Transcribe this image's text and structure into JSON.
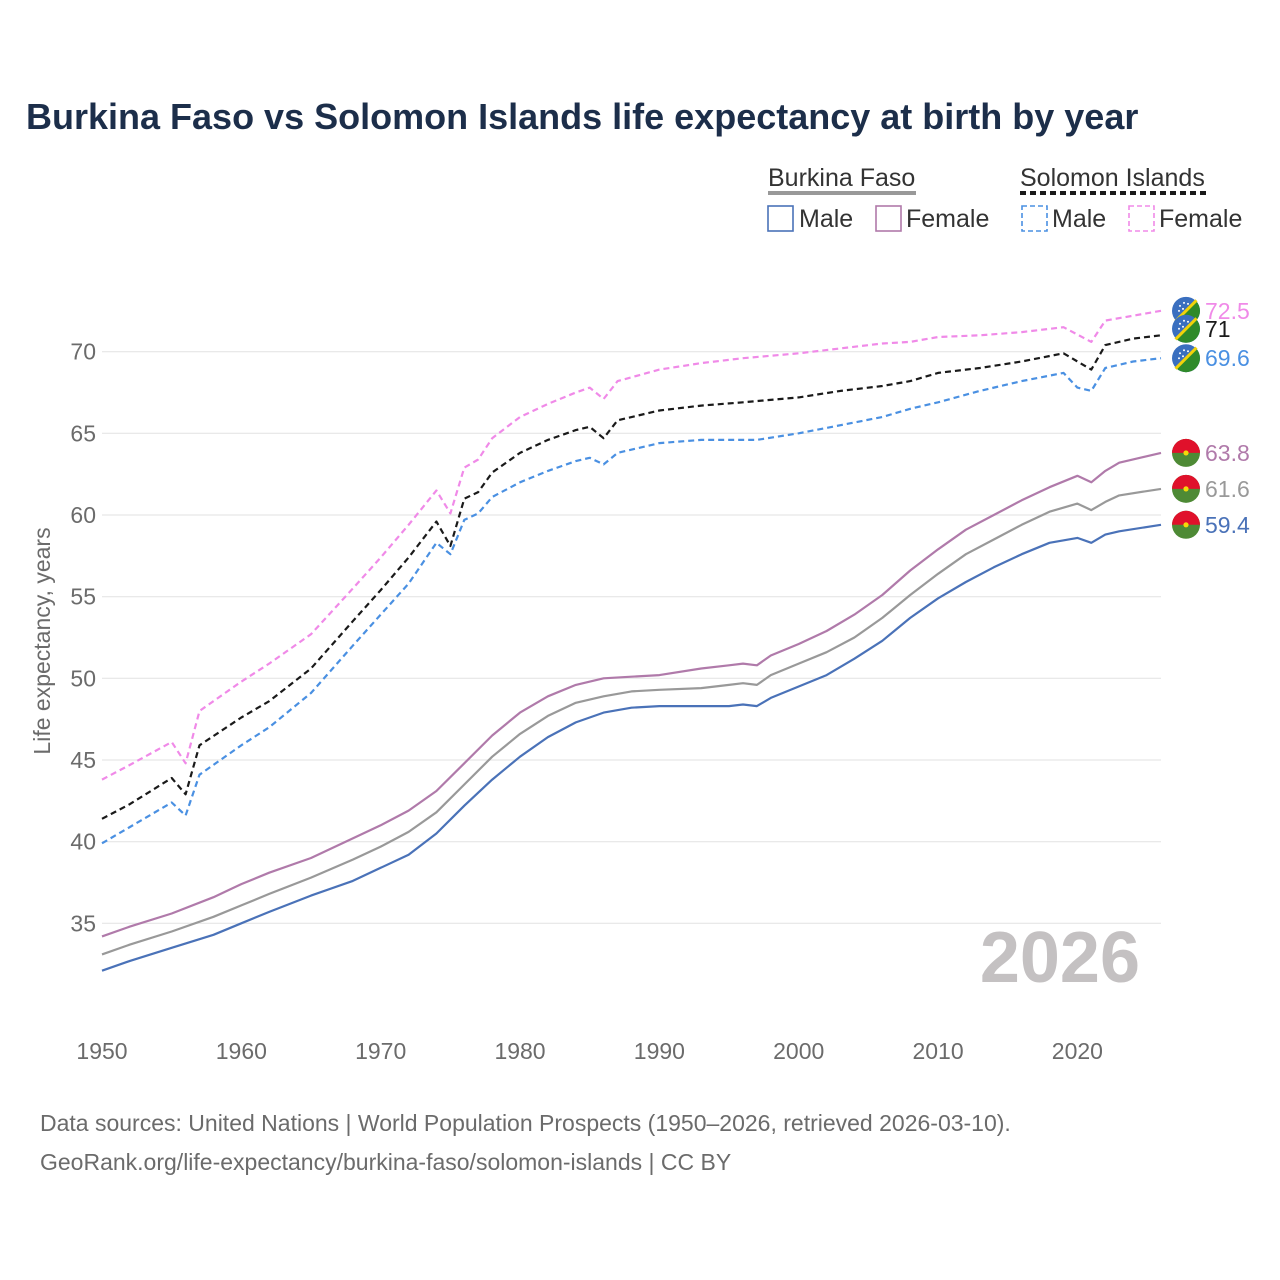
{
  "chart_data": {
    "type": "line",
    "title": "Burkina Faso vs Solomon Islands life expectancy at birth by year",
    "ylabel": "Life expectancy, years",
    "xlabel": "",
    "xlim": [
      1950,
      2026
    ],
    "ylim": [
      30,
      75
    ],
    "x_ticks": [
      "1950",
      "1960",
      "1970",
      "1980",
      "1990",
      "2000",
      "2010",
      "2020"
    ],
    "y_ticks": [
      "35",
      "40",
      "45",
      "50",
      "55",
      "60",
      "65",
      "70"
    ],
    "year_watermark": "2026",
    "legend": {
      "groups": [
        "Burkina Faso",
        "Solomon Islands"
      ],
      "items": [
        "Male",
        "Female",
        "Male",
        "Female"
      ]
    },
    "colors": {
      "male_bf": "#4a72b8",
      "female_bf": "#b07aaa",
      "total_bf": "#999999",
      "male_sb": "#4a90e2",
      "female_sb": "#f08ae8",
      "total_sb": "#1a1a1a"
    },
    "series": [
      {
        "name": "Burkina Faso — Female",
        "key": "female_bf",
        "dashed": false,
        "end_label": "63.8",
        "points": [
          [
            1950,
            34.2
          ],
          [
            1952,
            34.8
          ],
          [
            1955,
            35.6
          ],
          [
            1958,
            36.6
          ],
          [
            1960,
            37.4
          ],
          [
            1962,
            38.1
          ],
          [
            1965,
            39.0
          ],
          [
            1968,
            40.2
          ],
          [
            1970,
            41.0
          ],
          [
            1972,
            41.9
          ],
          [
            1974,
            43.1
          ],
          [
            1976,
            44.8
          ],
          [
            1978,
            46.5
          ],
          [
            1980,
            47.9
          ],
          [
            1982,
            48.9
          ],
          [
            1984,
            49.6
          ],
          [
            1986,
            50.0
          ],
          [
            1988,
            50.1
          ],
          [
            1990,
            50.2
          ],
          [
            1993,
            50.6
          ],
          [
            1995,
            50.8
          ],
          [
            1996,
            50.9
          ],
          [
            1997,
            50.8
          ],
          [
            1998,
            51.4
          ],
          [
            2000,
            52.1
          ],
          [
            2002,
            52.9
          ],
          [
            2004,
            53.9
          ],
          [
            2006,
            55.1
          ],
          [
            2008,
            56.6
          ],
          [
            2010,
            57.9
          ],
          [
            2012,
            59.1
          ],
          [
            2014,
            60.0
          ],
          [
            2016,
            60.9
          ],
          [
            2018,
            61.7
          ],
          [
            2020,
            62.4
          ],
          [
            2021,
            62.0
          ],
          [
            2022,
            62.7
          ],
          [
            2023,
            63.2
          ],
          [
            2026,
            63.8
          ]
        ]
      },
      {
        "name": "Burkina Faso — Total",
        "key": "total_bf",
        "dashed": false,
        "end_label": "61.6",
        "points": [
          [
            1950,
            33.1
          ],
          [
            1952,
            33.7
          ],
          [
            1955,
            34.5
          ],
          [
            1958,
            35.4
          ],
          [
            1960,
            36.1
          ],
          [
            1962,
            36.8
          ],
          [
            1965,
            37.8
          ],
          [
            1968,
            38.9
          ],
          [
            1970,
            39.7
          ],
          [
            1972,
            40.6
          ],
          [
            1974,
            41.8
          ],
          [
            1976,
            43.5
          ],
          [
            1978,
            45.2
          ],
          [
            1980,
            46.6
          ],
          [
            1982,
            47.7
          ],
          [
            1984,
            48.5
          ],
          [
            1986,
            48.9
          ],
          [
            1988,
            49.2
          ],
          [
            1990,
            49.3
          ],
          [
            1993,
            49.4
          ],
          [
            1995,
            49.6
          ],
          [
            1996,
            49.7
          ],
          [
            1997,
            49.6
          ],
          [
            1998,
            50.2
          ],
          [
            2000,
            50.9
          ],
          [
            2002,
            51.6
          ],
          [
            2004,
            52.5
          ],
          [
            2006,
            53.7
          ],
          [
            2008,
            55.1
          ],
          [
            2010,
            56.4
          ],
          [
            2012,
            57.6
          ],
          [
            2014,
            58.5
          ],
          [
            2016,
            59.4
          ],
          [
            2018,
            60.2
          ],
          [
            2020,
            60.7
          ],
          [
            2021,
            60.3
          ],
          [
            2022,
            60.8
          ],
          [
            2023,
            61.2
          ],
          [
            2026,
            61.6
          ]
        ]
      },
      {
        "name": "Burkina Faso — Male",
        "key": "male_bf",
        "dashed": false,
        "end_label": "59.4",
        "points": [
          [
            1950,
            32.1
          ],
          [
            1952,
            32.7
          ],
          [
            1955,
            33.5
          ],
          [
            1958,
            34.3
          ],
          [
            1960,
            35.0
          ],
          [
            1962,
            35.7
          ],
          [
            1965,
            36.7
          ],
          [
            1968,
            37.6
          ],
          [
            1970,
            38.4
          ],
          [
            1972,
            39.2
          ],
          [
            1974,
            40.5
          ],
          [
            1976,
            42.2
          ],
          [
            1978,
            43.8
          ],
          [
            1980,
            45.2
          ],
          [
            1982,
            46.4
          ],
          [
            1984,
            47.3
          ],
          [
            1986,
            47.9
          ],
          [
            1988,
            48.2
          ],
          [
            1990,
            48.3
          ],
          [
            1993,
            48.3
          ],
          [
            1995,
            48.3
          ],
          [
            1996,
            48.4
          ],
          [
            1997,
            48.3
          ],
          [
            1998,
            48.8
          ],
          [
            2000,
            49.5
          ],
          [
            2002,
            50.2
          ],
          [
            2004,
            51.2
          ],
          [
            2006,
            52.3
          ],
          [
            2008,
            53.7
          ],
          [
            2010,
            54.9
          ],
          [
            2012,
            55.9
          ],
          [
            2014,
            56.8
          ],
          [
            2016,
            57.6
          ],
          [
            2018,
            58.3
          ],
          [
            2020,
            58.6
          ],
          [
            2021,
            58.3
          ],
          [
            2022,
            58.8
          ],
          [
            2023,
            59.0
          ],
          [
            2026,
            59.4
          ]
        ]
      },
      {
        "name": "Solomon Islands — Female",
        "key": "female_sb",
        "dashed": true,
        "end_label": "72.5",
        "points": [
          [
            1950,
            43.8
          ],
          [
            1952,
            44.7
          ],
          [
            1955,
            46.1
          ],
          [
            1956,
            44.8
          ],
          [
            1957,
            48.0
          ],
          [
            1960,
            49.8
          ],
          [
            1962,
            50.9
          ],
          [
            1965,
            52.7
          ],
          [
            1968,
            55.5
          ],
          [
            1970,
            57.4
          ],
          [
            1972,
            59.4
          ],
          [
            1974,
            61.5
          ],
          [
            1975,
            60.1
          ],
          [
            1976,
            62.9
          ],
          [
            1977,
            63.4
          ],
          [
            1978,
            64.7
          ],
          [
            1980,
            66.0
          ],
          [
            1982,
            66.8
          ],
          [
            1984,
            67.5
          ],
          [
            1985,
            67.8
          ],
          [
            1986,
            67.1
          ],
          [
            1987,
            68.2
          ],
          [
            1990,
            68.9
          ],
          [
            1993,
            69.3
          ],
          [
            1996,
            69.6
          ],
          [
            2000,
            69.9
          ],
          [
            2003,
            70.2
          ],
          [
            2006,
            70.5
          ],
          [
            2008,
            70.6
          ],
          [
            2010,
            70.9
          ],
          [
            2013,
            71.0
          ],
          [
            2016,
            71.2
          ],
          [
            2019,
            71.5
          ],
          [
            2021,
            70.6
          ],
          [
            2022,
            71.9
          ],
          [
            2024,
            72.2
          ],
          [
            2026,
            72.5
          ]
        ]
      },
      {
        "name": "Solomon Islands — Total",
        "key": "total_sb",
        "dashed": true,
        "end_label": "71",
        "points": [
          [
            1950,
            41.4
          ],
          [
            1952,
            42.3
          ],
          [
            1955,
            43.9
          ],
          [
            1956,
            42.9
          ],
          [
            1957,
            45.9
          ],
          [
            1960,
            47.6
          ],
          [
            1962,
            48.6
          ],
          [
            1965,
            50.6
          ],
          [
            1968,
            53.5
          ],
          [
            1970,
            55.4
          ],
          [
            1972,
            57.4
          ],
          [
            1974,
            59.6
          ],
          [
            1975,
            58.1
          ],
          [
            1976,
            61.0
          ],
          [
            1977,
            61.4
          ],
          [
            1978,
            62.6
          ],
          [
            1980,
            63.8
          ],
          [
            1982,
            64.6
          ],
          [
            1984,
            65.2
          ],
          [
            1985,
            65.4
          ],
          [
            1986,
            64.7
          ],
          [
            1987,
            65.8
          ],
          [
            1990,
            66.4
          ],
          [
            1993,
            66.7
          ],
          [
            1996,
            66.9
          ],
          [
            2000,
            67.2
          ],
          [
            2003,
            67.6
          ],
          [
            2006,
            67.9
          ],
          [
            2008,
            68.2
          ],
          [
            2010,
            68.7
          ],
          [
            2013,
            69.0
          ],
          [
            2016,
            69.4
          ],
          [
            2019,
            69.9
          ],
          [
            2021,
            68.9
          ],
          [
            2022,
            70.4
          ],
          [
            2024,
            70.8
          ],
          [
            2026,
            71.0
          ]
        ]
      },
      {
        "name": "Solomon Islands — Male",
        "key": "male_sb",
        "dashed": true,
        "end_label": "69.6",
        "points": [
          [
            1950,
            39.9
          ],
          [
            1952,
            40.9
          ],
          [
            1955,
            42.4
          ],
          [
            1956,
            41.6
          ],
          [
            1957,
            44.1
          ],
          [
            1960,
            45.9
          ],
          [
            1962,
            47.0
          ],
          [
            1965,
            49.1
          ],
          [
            1968,
            52.0
          ],
          [
            1970,
            53.9
          ],
          [
            1972,
            55.8
          ],
          [
            1974,
            58.3
          ],
          [
            1975,
            57.6
          ],
          [
            1976,
            59.7
          ],
          [
            1977,
            60.1
          ],
          [
            1978,
            61.1
          ],
          [
            1980,
            62.0
          ],
          [
            1982,
            62.7
          ],
          [
            1984,
            63.3
          ],
          [
            1985,
            63.5
          ],
          [
            1986,
            63.1
          ],
          [
            1987,
            63.8
          ],
          [
            1990,
            64.4
          ],
          [
            1993,
            64.6
          ],
          [
            1996,
            64.6
          ],
          [
            1997,
            64.6
          ],
          [
            2000,
            65.0
          ],
          [
            2003,
            65.5
          ],
          [
            2006,
            66.0
          ],
          [
            2008,
            66.5
          ],
          [
            2010,
            66.9
          ],
          [
            2013,
            67.6
          ],
          [
            2016,
            68.2
          ],
          [
            2019,
            68.7
          ],
          [
            2020,
            67.8
          ],
          [
            2021,
            67.6
          ],
          [
            2022,
            69.0
          ],
          [
            2024,
            69.4
          ],
          [
            2026,
            69.6
          ]
        ]
      }
    ]
  },
  "source": {
    "line1": "Data sources: United Nations | World Population Prospects (1950–2026, retrieved 2026-03-10).",
    "line2": "GeoRank.org/life-expectancy/burkina-faso/solomon-islands | CC BY"
  }
}
